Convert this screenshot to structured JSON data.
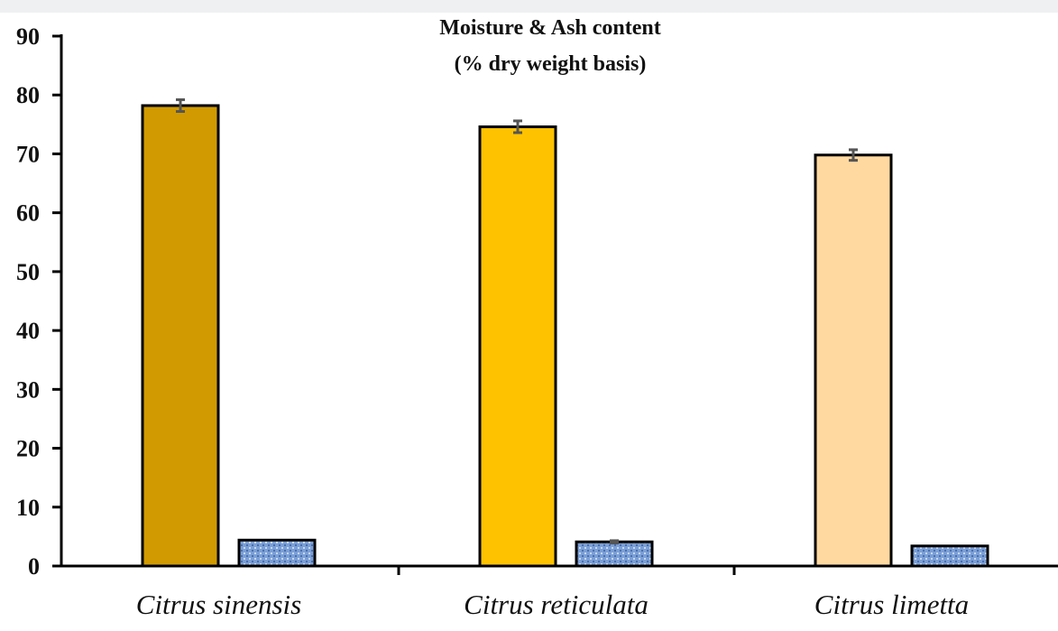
{
  "chart_data": {
    "type": "bar",
    "title": "Moisture & Ash content",
    "subtitle": "(% dry weight basis)",
    "xlabel": "",
    "ylabel": "",
    "ylim": [
      0,
      90
    ],
    "yticks": [
      0,
      10,
      20,
      30,
      40,
      50,
      60,
      70,
      80,
      90
    ],
    "categories": [
      "Citrus sinensis",
      "Citrus reticulata",
      "Citrus limetta"
    ],
    "series": [
      {
        "values": [
          78.2,
          74.6,
          69.8
        ],
        "errors": [
          1.0,
          1.0,
          0.9
        ],
        "colors": [
          "#d09a00",
          "#ffc200",
          "#ffd9a0"
        ]
      },
      {
        "values": [
          4.4,
          4.1,
          3.4
        ],
        "errors": [
          0.0,
          0.2,
          0.0
        ],
        "colors": [
          "#7b9fd6",
          "#7b9fd6",
          "#7b9fd6"
        ]
      }
    ],
    "grid": false,
    "legend": "none"
  }
}
